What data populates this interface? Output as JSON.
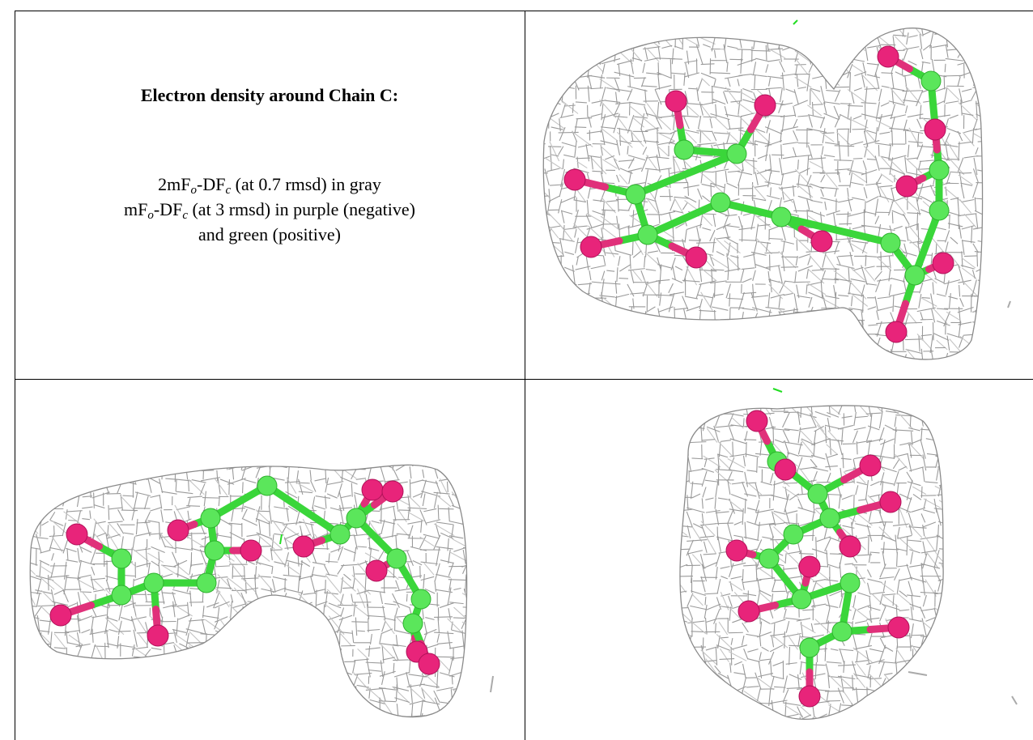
{
  "title": "Electron density around Chain C:",
  "lines": [
    [
      {
        "text": "2mF"
      },
      {
        "text": "o",
        "sub": true
      },
      {
        "text": "-DF"
      },
      {
        "text": "c",
        "sub": true
      },
      {
        "text": " (at 0.7 rmsd) in gray"
      }
    ],
    [
      {
        "text": "mF"
      },
      {
        "text": "o",
        "sub": true
      },
      {
        "text": "-DF"
      },
      {
        "text": "c",
        "sub": true
      },
      {
        "text": " (at 3 rmsd) in purple (negative)"
      }
    ],
    [
      {
        "text": "and green (positive)"
      }
    ]
  ]
}
